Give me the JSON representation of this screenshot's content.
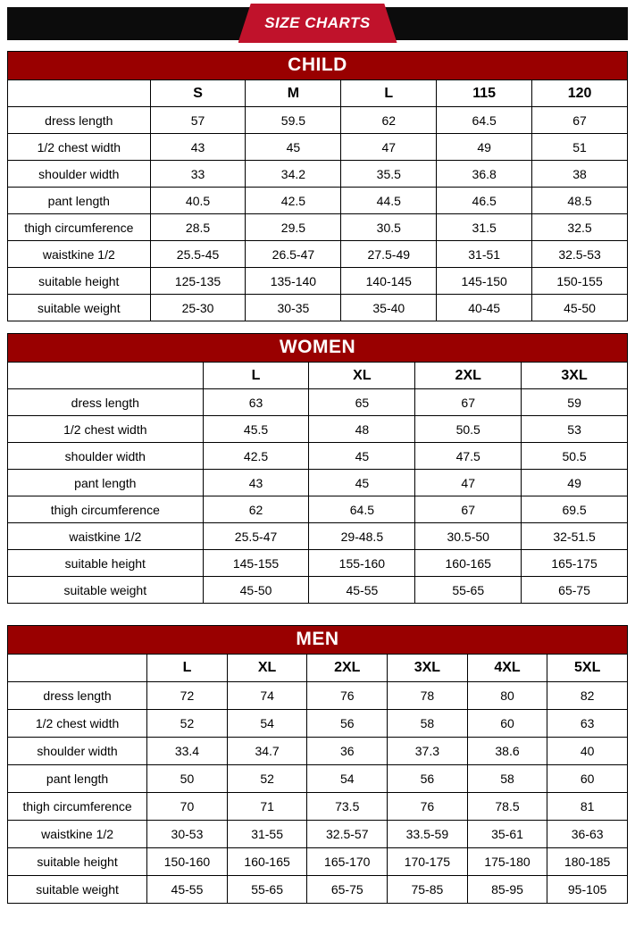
{
  "banner": {
    "title": "SIZE CHARTS"
  },
  "colors": {
    "page_bg": "#ffffff",
    "banner_bg": "#0c0c0c",
    "ribbon_red": "#c0122b",
    "header_red": "#990000",
    "border": "#000000",
    "header_text": "#ffffff",
    "body_text": "#000000"
  },
  "tables": [
    {
      "id": "child",
      "title": "CHILD",
      "sizes": [
        "S",
        "M",
        "L",
        "115",
        "120"
      ],
      "rows": [
        {
          "label": "dress length",
          "values": [
            "57",
            "59.5",
            "62",
            "64.5",
            "67"
          ]
        },
        {
          "label": "1/2 chest width",
          "values": [
            "43",
            "45",
            "47",
            "49",
            "51"
          ]
        },
        {
          "label": "shoulder width",
          "values": [
            "33",
            "34.2",
            "35.5",
            "36.8",
            "38"
          ]
        },
        {
          "label": "pant length",
          "values": [
            "40.5",
            "42.5",
            "44.5",
            "46.5",
            "48.5"
          ]
        },
        {
          "label": "thigh circumference",
          "values": [
            "28.5",
            "29.5",
            "30.5",
            "31.5",
            "32.5"
          ]
        },
        {
          "label": "waistkine 1/2",
          "values": [
            "25.5-45",
            "26.5-47",
            "27.5-49",
            "31-51",
            "32.5-53"
          ]
        },
        {
          "label": "suitable height",
          "values": [
            "125-135",
            "135-140",
            "140-145",
            "145-150",
            "150-155"
          ]
        },
        {
          "label": "suitable weight",
          "values": [
            "25-30",
            "30-35",
            "35-40",
            "40-45",
            "45-50"
          ]
        }
      ]
    },
    {
      "id": "women",
      "title": "WOMEN",
      "sizes": [
        "L",
        "XL",
        "2XL",
        "3XL"
      ],
      "rows": [
        {
          "label": "dress length",
          "values": [
            "63",
            "65",
            "67",
            "59"
          ]
        },
        {
          "label": "1/2 chest width",
          "values": [
            "45.5",
            "48",
            "50.5",
            "53"
          ]
        },
        {
          "label": "shoulder width",
          "values": [
            "42.5",
            "45",
            "47.5",
            "50.5"
          ]
        },
        {
          "label": "pant length",
          "values": [
            "43",
            "45",
            "47",
            "49"
          ]
        },
        {
          "label": "thigh circumference",
          "values": [
            "62",
            "64.5",
            "67",
            "69.5"
          ]
        },
        {
          "label": "waistkine 1/2",
          "values": [
            "25.5-47",
            "29-48.5",
            "30.5-50",
            "32-51.5"
          ]
        },
        {
          "label": "suitable height",
          "values": [
            "145-155",
            "155-160",
            "160-165",
            "165-175"
          ]
        },
        {
          "label": "suitable weight",
          "values": [
            "45-50",
            "45-55",
            "55-65",
            "65-75"
          ]
        }
      ]
    },
    {
      "id": "men",
      "title": "MEN",
      "sizes": [
        "L",
        "XL",
        "2XL",
        "3XL",
        "4XL",
        "5XL"
      ],
      "rows": [
        {
          "label": "dress length",
          "values": [
            "72",
            "74",
            "76",
            "78",
            "80",
            "82"
          ]
        },
        {
          "label": "1/2 chest width",
          "values": [
            "52",
            "54",
            "56",
            "58",
            "60",
            "63"
          ]
        },
        {
          "label": "shoulder width",
          "values": [
            "33.4",
            "34.7",
            "36",
            "37.3",
            "38.6",
            "40"
          ]
        },
        {
          "label": "pant length",
          "values": [
            "50",
            "52",
            "54",
            "56",
            "58",
            "60"
          ]
        },
        {
          "label": "thigh circumference",
          "values": [
            "70",
            "71",
            "73.5",
            "76",
            "78.5",
            "81"
          ]
        },
        {
          "label": "waistkine 1/2",
          "values": [
            "30-53",
            "31-55",
            "32.5-57",
            "33.5-59",
            "35-61",
            "36-63"
          ]
        },
        {
          "label": "suitable height",
          "values": [
            "150-160",
            "160-165",
            "165-170",
            "170-175",
            "175-180",
            "180-185"
          ]
        },
        {
          "label": "suitable weight",
          "values": [
            "45-55",
            "55-65",
            "65-75",
            "75-85",
            "85-95",
            "95-105"
          ]
        }
      ]
    }
  ]
}
